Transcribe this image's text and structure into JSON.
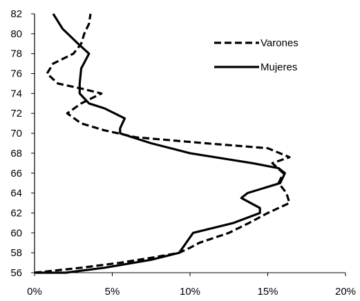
{
  "chart_data": {
    "type": "line",
    "title": "",
    "xlabel": "",
    "ylabel": "",
    "x_axis": {
      "min": 0,
      "max": 0.2,
      "ticks": [
        0,
        0.05,
        0.1,
        0.15,
        0.2
      ],
      "tick_labels": [
        "0%",
        "5%",
        "10%",
        "15%",
        "20%"
      ]
    },
    "y_axis": {
      "min": 56,
      "max": 82,
      "ticks": [
        56,
        58,
        60,
        62,
        64,
        66,
        68,
        70,
        72,
        74,
        76,
        78,
        80,
        82
      ],
      "tick_labels": [
        "56",
        "58",
        "60",
        "62",
        "64",
        "66",
        "68",
        "70",
        "72",
        "74",
        "76",
        "78",
        "80",
        "82"
      ]
    },
    "grid": false,
    "legend_position": "top-right",
    "series": [
      {
        "name": "Varones",
        "line_style": "dashed",
        "color": "#000000",
        "points": [
          {
            "x": 0.0,
            "y": 56.0
          },
          {
            "x": 0.03,
            "y": 56.5
          },
          {
            "x": 0.055,
            "y": 57.0
          },
          {
            "x": 0.075,
            "y": 57.5
          },
          {
            "x": 0.093,
            "y": 58.0
          },
          {
            "x": 0.1,
            "y": 58.5
          },
          {
            "x": 0.106,
            "y": 59.0
          },
          {
            "x": 0.125,
            "y": 60.0
          },
          {
            "x": 0.138,
            "y": 61.0
          },
          {
            "x": 0.15,
            "y": 62.0
          },
          {
            "x": 0.164,
            "y": 63.0
          },
          {
            "x": 0.162,
            "y": 64.0
          },
          {
            "x": 0.157,
            "y": 65.0
          },
          {
            "x": 0.16,
            "y": 66.0
          },
          {
            "x": 0.153,
            "y": 67.0
          },
          {
            "x": 0.164,
            "y": 67.6
          },
          {
            "x": 0.15,
            "y": 68.5
          },
          {
            "x": 0.11,
            "y": 69.0
          },
          {
            "x": 0.065,
            "y": 69.6
          },
          {
            "x": 0.045,
            "y": 70.3
          },
          {
            "x": 0.03,
            "y": 71.0
          },
          {
            "x": 0.021,
            "y": 72.0
          },
          {
            "x": 0.03,
            "y": 73.0
          },
          {
            "x": 0.043,
            "y": 74.0
          },
          {
            "x": 0.03,
            "y": 74.5
          },
          {
            "x": 0.015,
            "y": 75.0
          },
          {
            "x": 0.008,
            "y": 76.0
          },
          {
            "x": 0.012,
            "y": 77.0
          },
          {
            "x": 0.025,
            "y": 78.0
          },
          {
            "x": 0.03,
            "y": 79.0
          },
          {
            "x": 0.032,
            "y": 80.0
          },
          {
            "x": 0.035,
            "y": 81.0
          },
          {
            "x": 0.036,
            "y": 82.0
          }
        ]
      },
      {
        "name": "Mujeres",
        "line_style": "solid",
        "color": "#000000",
        "points": [
          {
            "x": 0.0,
            "y": 56.0
          },
          {
            "x": 0.02,
            "y": 56.0
          },
          {
            "x": 0.045,
            "y": 56.5
          },
          {
            "x": 0.075,
            "y": 57.3
          },
          {
            "x": 0.093,
            "y": 58.0
          },
          {
            "x": 0.102,
            "y": 60.0
          },
          {
            "x": 0.128,
            "y": 61.0
          },
          {
            "x": 0.145,
            "y": 62.0
          },
          {
            "x": 0.145,
            "y": 62.5
          },
          {
            "x": 0.133,
            "y": 63.5
          },
          {
            "x": 0.137,
            "y": 64.0
          },
          {
            "x": 0.158,
            "y": 65.0
          },
          {
            "x": 0.161,
            "y": 66.0
          },
          {
            "x": 0.157,
            "y": 66.5
          },
          {
            "x": 0.14,
            "y": 67.0
          },
          {
            "x": 0.1,
            "y": 68.0
          },
          {
            "x": 0.075,
            "y": 69.0
          },
          {
            "x": 0.055,
            "y": 70.0
          },
          {
            "x": 0.055,
            "y": 70.5
          },
          {
            "x": 0.058,
            "y": 71.5
          },
          {
            "x": 0.045,
            "y": 72.5
          },
          {
            "x": 0.035,
            "y": 73.0
          },
          {
            "x": 0.029,
            "y": 74.0
          },
          {
            "x": 0.029,
            "y": 75.0
          },
          {
            "x": 0.03,
            "y": 76.5
          },
          {
            "x": 0.035,
            "y": 78.0
          },
          {
            "x": 0.028,
            "y": 79.0
          },
          {
            "x": 0.018,
            "y": 80.5
          },
          {
            "x": 0.012,
            "y": 82.0
          }
        ]
      }
    ]
  }
}
